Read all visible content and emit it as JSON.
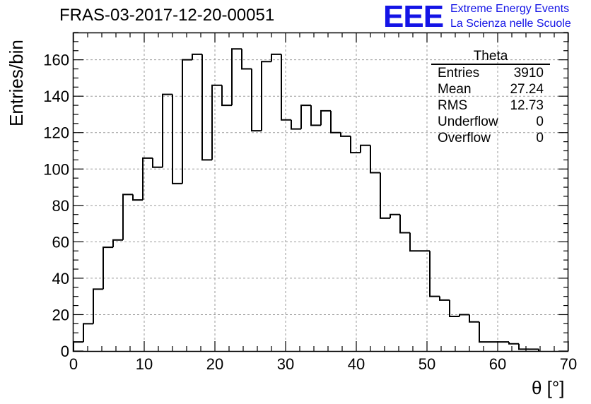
{
  "header": {
    "run_title": "FRAS-03-2017-12-20-00051",
    "logo_text": "EEE",
    "logo_line1": "Extreme Energy Events",
    "logo_line2": "La Scienza nelle Scuole",
    "logo_color": "#1414e6"
  },
  "stats": {
    "name": "Theta",
    "rows": [
      {
        "label": "Entries",
        "value": "3910"
      },
      {
        "label": "Mean",
        "value": "27.24"
      },
      {
        "label": "RMS",
        "value": "12.73"
      },
      {
        "label": "Underflow",
        "value": "0"
      },
      {
        "label": "Overflow",
        "value": "0"
      }
    ]
  },
  "chart_data": {
    "type": "bar",
    "histogram": true,
    "xlabel": "θ [°]",
    "ylabel": "Entries/bin",
    "xlim": [
      0,
      70
    ],
    "ylim": [
      0,
      175
    ],
    "bin_width": 1.4,
    "bin_edges_start": 0,
    "x_ticks": [
      0,
      10,
      20,
      30,
      40,
      50,
      60,
      70
    ],
    "y_ticks": [
      0,
      20,
      40,
      60,
      80,
      100,
      120,
      140,
      160
    ],
    "grid": true,
    "line_color": "#000000",
    "values": [
      5,
      15,
      34,
      57,
      61,
      86,
      83,
      106,
      101,
      141,
      92,
      160,
      163,
      105,
      146,
      135,
      166,
      155,
      121,
      159,
      163,
      127,
      122,
      135,
      124,
      132,
      120,
      118,
      109,
      113,
      98,
      73,
      75,
      65,
      55,
      55,
      30,
      28,
      19,
      20,
      16,
      5,
      5,
      5,
      4,
      1,
      1
    ]
  }
}
